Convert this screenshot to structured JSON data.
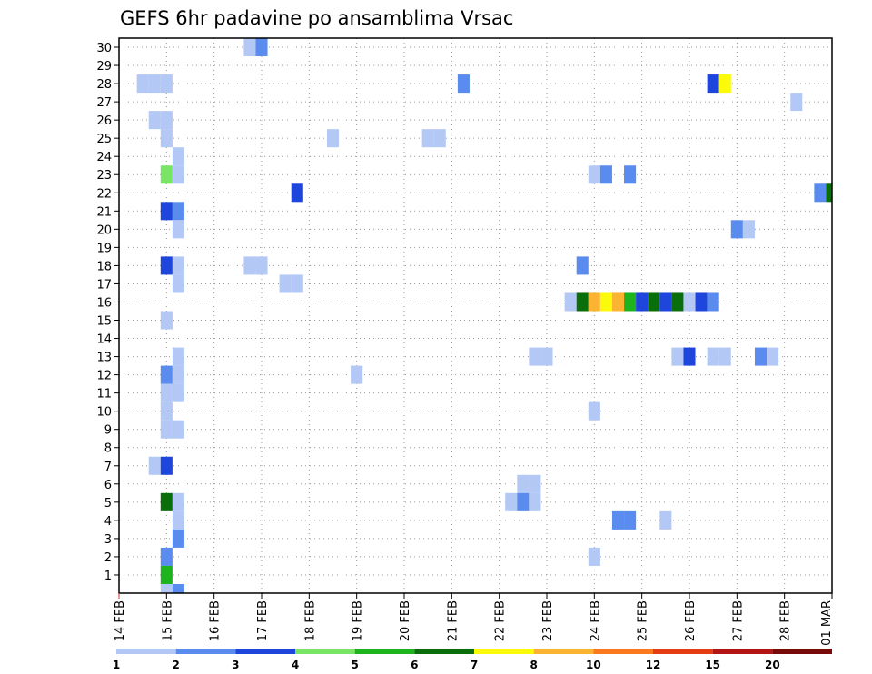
{
  "chart_data": {
    "type": "heatmap",
    "title": "GEFS 6hr padavine po ansamblima Vrsac",
    "xlabel": "",
    "ylabel": "",
    "x_ticks": [
      "14 FEB",
      "15 FEB",
      "16 FEB",
      "17 FEB",
      "18 FEB",
      "19 FEB",
      "20 FEB",
      "21 FEB",
      "22 FEB",
      "23 FEB",
      "24 FEB",
      "25 FEB",
      "26 FEB",
      "27 FEB",
      "28 FEB",
      "01 MAR"
    ],
    "y_ticks": [
      "1",
      "2",
      "3",
      "4",
      "5",
      "6",
      "7",
      "8",
      "9",
      "10",
      "11",
      "12",
      "13",
      "14",
      "15",
      "16",
      "17",
      "18",
      "19",
      "20",
      "21",
      "22",
      "23",
      "24",
      "25",
      "26",
      "27",
      "28",
      "29",
      "30"
    ],
    "xlim": [
      "14 FEB 00Z",
      "01 MAR 00Z"
    ],
    "ylim": [
      0,
      30
    ],
    "grid": true,
    "time_step_hours": 6,
    "color_scale": {
      "labels": [
        "1",
        "2",
        "3",
        "4",
        "5",
        "6",
        "7",
        "8",
        "10",
        "12",
        "15",
        "20"
      ],
      "colors": [
        "#b4c8f5",
        "#5a8cf0",
        "#1e46dc",
        "#78e664",
        "#1eb41e",
        "#0a6e0a",
        "#fafa0a",
        "#fab432",
        "#fa781e",
        "#e63c14",
        "#b41414",
        "#780a0a"
      ]
    },
    "cells": [
      {
        "member": 30,
        "time": "16 FEB 18Z",
        "value": 1
      },
      {
        "member": 30,
        "time": "17 FEB 00Z",
        "value": 2
      },
      {
        "member": 28,
        "time": "14 FEB 12Z",
        "value": 1
      },
      {
        "member": 28,
        "time": "14 FEB 18Z",
        "value": 1
      },
      {
        "member": 28,
        "time": "15 FEB 00Z",
        "value": 1
      },
      {
        "member": 28,
        "time": "21 FEB 06Z",
        "value": 2
      },
      {
        "member": 28,
        "time": "26 FEB 12Z",
        "value": 3
      },
      {
        "member": 28,
        "time": "26 FEB 18Z",
        "value": 7
      },
      {
        "member": 27,
        "time": "28 FEB 06Z",
        "value": 1
      },
      {
        "member": 26,
        "time": "14 FEB 18Z",
        "value": 1
      },
      {
        "member": 26,
        "time": "15 FEB 00Z",
        "value": 1
      },
      {
        "member": 25,
        "time": "15 FEB 00Z",
        "value": 1
      },
      {
        "member": 25,
        "time": "18 FEB 12Z",
        "value": 1
      },
      {
        "member": 25,
        "time": "20 FEB 12Z",
        "value": 1
      },
      {
        "member": 25,
        "time": "20 FEB 18Z",
        "value": 1
      },
      {
        "member": 24,
        "time": "15 FEB 06Z",
        "value": 1
      },
      {
        "member": 23,
        "time": "15 FEB 00Z",
        "value": 4
      },
      {
        "member": 23,
        "time": "15 FEB 06Z",
        "value": 1
      },
      {
        "member": 23,
        "time": "24 FEB 00Z",
        "value": 1
      },
      {
        "member": 23,
        "time": "24 FEB 06Z",
        "value": 2
      },
      {
        "member": 23,
        "time": "24 FEB 18Z",
        "value": 2
      },
      {
        "member": 22,
        "time": "17 FEB 18Z",
        "value": 3
      },
      {
        "member": 22,
        "time": "28 FEB 18Z",
        "value": 2
      },
      {
        "member": 22,
        "time": "01 MAR 00Z",
        "value": 6
      },
      {
        "member": 21,
        "time": "15 FEB 00Z",
        "value": 3
      },
      {
        "member": 21,
        "time": "15 FEB 06Z",
        "value": 2
      },
      {
        "member": 20,
        "time": "15 FEB 06Z",
        "value": 1
      },
      {
        "member": 20,
        "time": "27 FEB 00Z",
        "value": 2
      },
      {
        "member": 20,
        "time": "27 FEB 06Z",
        "value": 1
      },
      {
        "member": 18,
        "time": "15 FEB 00Z",
        "value": 3
      },
      {
        "member": 18,
        "time": "15 FEB 06Z",
        "value": 1
      },
      {
        "member": 18,
        "time": "16 FEB 18Z",
        "value": 1
      },
      {
        "member": 18,
        "time": "17 FEB 00Z",
        "value": 1
      },
      {
        "member": 18,
        "time": "23 FEB 18Z",
        "value": 2
      },
      {
        "member": 17,
        "time": "15 FEB 06Z",
        "value": 1
      },
      {
        "member": 17,
        "time": "17 FEB 12Z",
        "value": 1
      },
      {
        "member": 17,
        "time": "17 FEB 18Z",
        "value": 1
      },
      {
        "member": 16,
        "time": "23 FEB 12Z",
        "value": 1
      },
      {
        "member": 16,
        "time": "23 FEB 18Z",
        "value": 6
      },
      {
        "member": 16,
        "time": "24 FEB 00Z",
        "value": 8
      },
      {
        "member": 16,
        "time": "24 FEB 06Z",
        "value": 7
      },
      {
        "member": 16,
        "time": "24 FEB 12Z",
        "value": 8
      },
      {
        "member": 16,
        "time": "24 FEB 18Z",
        "value": 5
      },
      {
        "member": 16,
        "time": "25 FEB 00Z",
        "value": 3
      },
      {
        "member": 16,
        "time": "25 FEB 06Z",
        "value": 6
      },
      {
        "member": 16,
        "time": "25 FEB 12Z",
        "value": 3
      },
      {
        "member": 16,
        "time": "25 FEB 18Z",
        "value": 6
      },
      {
        "member": 16,
        "time": "26 FEB 00Z",
        "value": 1
      },
      {
        "member": 16,
        "time": "26 FEB 06Z",
        "value": 3
      },
      {
        "member": 16,
        "time": "26 FEB 12Z",
        "value": 2
      },
      {
        "member": 15,
        "time": "15 FEB 00Z",
        "value": 1
      },
      {
        "member": 13,
        "time": "15 FEB 06Z",
        "value": 1
      },
      {
        "member": 13,
        "time": "22 FEB 18Z",
        "value": 1
      },
      {
        "member": 13,
        "time": "23 FEB 00Z",
        "value": 1
      },
      {
        "member": 13,
        "time": "25 FEB 18Z",
        "value": 1
      },
      {
        "member": 13,
        "time": "26 FEB 00Z",
        "value": 3
      },
      {
        "member": 13,
        "time": "26 FEB 12Z",
        "value": 1
      },
      {
        "member": 13,
        "time": "26 FEB 18Z",
        "value": 1
      },
      {
        "member": 13,
        "time": "27 FEB 12Z",
        "value": 2
      },
      {
        "member": 13,
        "time": "27 FEB 18Z",
        "value": 1
      },
      {
        "member": 12,
        "time": "15 FEB 00Z",
        "value": 2
      },
      {
        "member": 12,
        "time": "15 FEB 06Z",
        "value": 1
      },
      {
        "member": 12,
        "time": "19 FEB 00Z",
        "value": 1
      },
      {
        "member": 11,
        "time": "15 FEB 00Z",
        "value": 1
      },
      {
        "member": 11,
        "time": "15 FEB 06Z",
        "value": 1
      },
      {
        "member": 10,
        "time": "15 FEB 00Z",
        "value": 1
      },
      {
        "member": 10,
        "time": "24 FEB 00Z",
        "value": 1
      },
      {
        "member": 9,
        "time": "15 FEB 00Z",
        "value": 1
      },
      {
        "member": 9,
        "time": "15 FEB 06Z",
        "value": 1
      },
      {
        "member": 7,
        "time": "14 FEB 18Z",
        "value": 1
      },
      {
        "member": 7,
        "time": "15 FEB 00Z",
        "value": 3
      },
      {
        "member": 6,
        "time": "22 FEB 12Z",
        "value": 1
      },
      {
        "member": 6,
        "time": "22 FEB 18Z",
        "value": 1
      },
      {
        "member": 5,
        "time": "15 FEB 00Z",
        "value": 6
      },
      {
        "member": 5,
        "time": "15 FEB 06Z",
        "value": 1
      },
      {
        "member": 5,
        "time": "22 FEB 06Z",
        "value": 1
      },
      {
        "member": 5,
        "time": "22 FEB 12Z",
        "value": 2
      },
      {
        "member": 5,
        "time": "22 FEB 18Z",
        "value": 1
      },
      {
        "member": 4,
        "time": "15 FEB 06Z",
        "value": 1
      },
      {
        "member": 4,
        "time": "24 FEB 12Z",
        "value": 2
      },
      {
        "member": 4,
        "time": "24 FEB 18Z",
        "value": 2
      },
      {
        "member": 4,
        "time": "25 FEB 12Z",
        "value": 1
      },
      {
        "member": 3,
        "time": "15 FEB 06Z",
        "value": 2
      },
      {
        "member": 2,
        "time": "15 FEB 00Z",
        "value": 2
      },
      {
        "member": 2,
        "time": "24 FEB 00Z",
        "value": 1
      },
      {
        "member": 1,
        "time": "15 FEB 00Z",
        "value": 5
      },
      {
        "member": 0,
        "time": "15 FEB 00Z",
        "value": 1
      },
      {
        "member": 0,
        "time": "15 FEB 06Z",
        "value": 2
      }
    ]
  }
}
